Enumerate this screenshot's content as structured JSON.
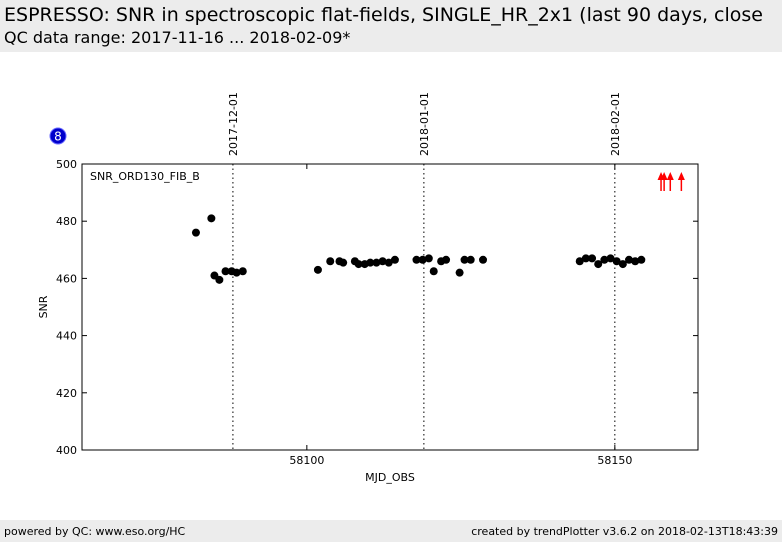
{
  "header": {
    "title": "ESPRESSO: SNR in spectroscopic flat-fields, SINGLE_HR_2x1 (last 90 days, close",
    "subtitle": "QC data range: 2017-11-16 ... 2018-02-09*"
  },
  "badge": "8",
  "footer": {
    "left": "powered by QC: www.eso.org/HC",
    "right": "created by trendPlotter v3.6.2 on 2018-02-13T18:43:39"
  },
  "colors": {
    "points": "#000000",
    "arrows": "#ff0000",
    "badge": "#0000cc"
  },
  "chart_data": {
    "type": "scatter",
    "annotation": "SNR_ORD130_FIB_B",
    "xlabel": "MJD_OBS",
    "ylabel": "SNR",
    "xlim": [
      58063.5,
      58163.5
    ],
    "ylim": [
      400,
      500
    ],
    "xticks": [
      58100,
      58150
    ],
    "yticks": [
      400,
      420,
      440,
      460,
      480,
      500
    ],
    "grid": false,
    "date_markers": [
      {
        "x": 58088,
        "label": "2017-12-01"
      },
      {
        "x": 58119,
        "label": "2018-01-01"
      },
      {
        "x": 58150,
        "label": "2018-02-01"
      }
    ],
    "points": [
      {
        "x": 58082.0,
        "y": 476.0
      },
      {
        "x": 58084.5,
        "y": 481.0
      },
      {
        "x": 58085.0,
        "y": 461.0
      },
      {
        "x": 58085.8,
        "y": 459.5
      },
      {
        "x": 58086.8,
        "y": 462.5
      },
      {
        "x": 58087.8,
        "y": 462.5
      },
      {
        "x": 58088.6,
        "y": 462.0
      },
      {
        "x": 58089.6,
        "y": 462.5
      },
      {
        "x": 58101.8,
        "y": 463.0
      },
      {
        "x": 58103.8,
        "y": 466.0
      },
      {
        "x": 58105.3,
        "y": 466.0
      },
      {
        "x": 58105.9,
        "y": 465.5
      },
      {
        "x": 58107.8,
        "y": 466.0
      },
      {
        "x": 58108.4,
        "y": 465.0
      },
      {
        "x": 58109.4,
        "y": 465.0
      },
      {
        "x": 58110.3,
        "y": 465.5
      },
      {
        "x": 58111.3,
        "y": 465.5
      },
      {
        "x": 58112.3,
        "y": 466.0
      },
      {
        "x": 58113.3,
        "y": 465.5
      },
      {
        "x": 58114.3,
        "y": 466.5
      },
      {
        "x": 58117.8,
        "y": 466.5
      },
      {
        "x": 58118.8,
        "y": 466.5
      },
      {
        "x": 58119.8,
        "y": 467.0
      },
      {
        "x": 58120.6,
        "y": 462.5
      },
      {
        "x": 58121.8,
        "y": 466.0
      },
      {
        "x": 58122.6,
        "y": 466.5
      },
      {
        "x": 58124.8,
        "y": 462.0
      },
      {
        "x": 58125.6,
        "y": 466.5
      },
      {
        "x": 58126.6,
        "y": 466.5
      },
      {
        "x": 58128.6,
        "y": 466.5
      },
      {
        "x": 58144.3,
        "y": 466.0
      },
      {
        "x": 58145.3,
        "y": 467.0
      },
      {
        "x": 58146.3,
        "y": 467.0
      },
      {
        "x": 58147.3,
        "y": 465.0
      },
      {
        "x": 58148.3,
        "y": 466.5
      },
      {
        "x": 58149.3,
        "y": 467.0
      },
      {
        "x": 58150.3,
        "y": 466.0
      },
      {
        "x": 58151.3,
        "y": 465.0
      },
      {
        "x": 58152.3,
        "y": 466.5
      },
      {
        "x": 58153.3,
        "y": 466.0
      },
      {
        "x": 58154.3,
        "y": 466.5
      }
    ],
    "out_of_range_arrows": [
      {
        "x": 58157.5
      },
      {
        "x": 58158.0
      },
      {
        "x": 58159.0
      },
      {
        "x": 58160.8
      }
    ]
  }
}
